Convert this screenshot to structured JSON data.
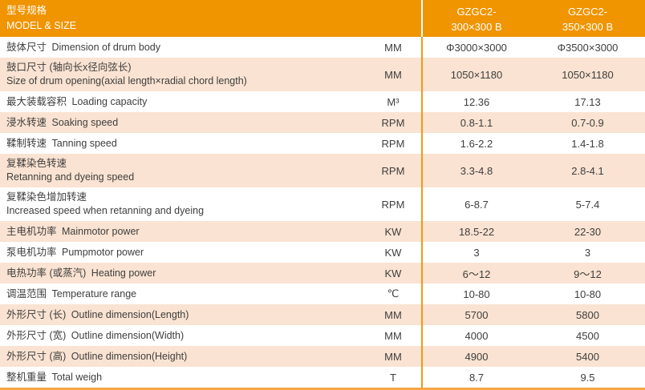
{
  "header": {
    "title_cn": "型号规格",
    "title_en": "MODEL & SIZE",
    "columns": [
      {
        "line1": "GZGC2-",
        "line2": "300×300 B"
      },
      {
        "line1": "GZGC2-",
        "line2": "350×300 B"
      }
    ]
  },
  "rows": [
    {
      "label_cn": "鼓体尺寸",
      "label_en": "Dimension of drum body",
      "unit": "MM",
      "values": [
        "Φ3000×3000",
        "Φ3500×3000"
      ],
      "two_line": false
    },
    {
      "label_cn": "鼓口尺寸 (轴向长x径向弦长)",
      "label_en": "Size of drum opening(axial length×radial chord length)",
      "unit": "MM",
      "values": [
        "1050×1180",
        "1050×1180"
      ],
      "two_line": true
    },
    {
      "label_cn": "最大装载容积",
      "label_en": "Loading capacity",
      "unit": "M³",
      "values": [
        "12.36",
        "17.13"
      ],
      "two_line": false
    },
    {
      "label_cn": "浸水转速",
      "label_en": "Soaking speed",
      "unit": "RPM",
      "values": [
        "0.8-1.1",
        "0.7-0.9"
      ],
      "two_line": false
    },
    {
      "label_cn": "鞣制转速",
      "label_en": "Tanning speed",
      "unit": "RPM",
      "values": [
        "1.6-2.2",
        "1.4-1.8"
      ],
      "two_line": false
    },
    {
      "label_cn": "复鞣染色转速",
      "label_en": "Retanning and dyeing speed",
      "unit": "RPM",
      "values": [
        "3.3-4.8",
        "2.8-4.1"
      ],
      "two_line": true
    },
    {
      "label_cn": "复鞣染色增加转速",
      "label_en": "Increased speed when retanning and dyeing",
      "unit": "RPM",
      "values": [
        "6-8.7",
        "5-7.4"
      ],
      "two_line": true
    },
    {
      "label_cn": "主电机功率",
      "label_en": "Mainmotor power",
      "unit": "KW",
      "values": [
        "18.5-22",
        "22-30"
      ],
      "two_line": false
    },
    {
      "label_cn": "泵电机功率",
      "label_en": "Pumpmotor power",
      "unit": "KW",
      "values": [
        "3",
        "3"
      ],
      "two_line": false
    },
    {
      "label_cn": "电热功率 (或蒸汽)",
      "label_en": "Heating power",
      "unit": "KW",
      "values": [
        "6～12",
        "9～12"
      ],
      "two_line": false
    },
    {
      "label_cn": "调温范围",
      "label_en": "Temperature range",
      "unit": "℃",
      "values": [
        "10-80",
        "10-80"
      ],
      "two_line": false
    },
    {
      "label_cn": "外形尺寸 (长)",
      "label_en": "Outline dimension(Length)",
      "unit": "MM",
      "values": [
        "5700",
        "5800"
      ],
      "two_line": false
    },
    {
      "label_cn": "外形尺寸 (宽)",
      "label_en": "Outline dimension(Width)",
      "unit": "MM",
      "values": [
        "4000",
        "4500"
      ],
      "two_line": false
    },
    {
      "label_cn": "外形尺寸 (高)",
      "label_en": "Outline dimension(Height)",
      "unit": "MM",
      "values": [
        "4900",
        "5400"
      ],
      "two_line": false
    },
    {
      "label_cn": "整机重量",
      "label_en": "Total weigh",
      "unit": "T",
      "values": [
        "8.7",
        "9.5"
      ],
      "two_line": false
    }
  ],
  "colors": {
    "header_bg": "#f09400",
    "header_text": "#ffffff",
    "row_bg": "#ffffff",
    "row_alt_bg": "#fae3d2",
    "divider": "#f39912",
    "bottom_border": "#f4a64a",
    "text": "#3e3e3e"
  }
}
